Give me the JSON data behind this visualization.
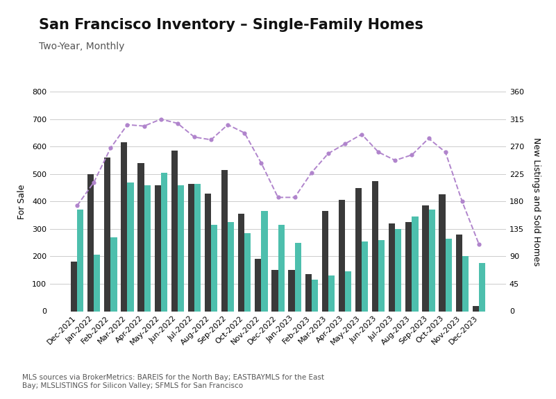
{
  "title": "San Francisco Inventory – Single-Family Homes",
  "subtitle": "Two-Year, Monthly",
  "ylabel_left": "For Sale",
  "ylabel_right": "New Listings and Sold Homes",
  "footnote": "MLS sources via BrokerMetrics: BAREIS for the North Bay; EASTBAYMLS for the East\nBay; MLSLISTINGS for Silicon Valley; SFMLS for San Francisco",
  "categories": [
    "Dec-2021",
    "Jan-2022",
    "Feb-2022",
    "Mar-2022",
    "Apr-2022",
    "May-2022",
    "Jun-2022",
    "Jul-2022",
    "Aug-2022",
    "Sep-2022",
    "Oct-2022",
    "Nov-2022",
    "Dec-2022",
    "Jan-2023",
    "Feb-2023",
    "Mar-2023",
    "Apr-2023",
    "May-2023",
    "Jun-2023",
    "Jul-2023",
    "Aug-2023",
    "Sep-2023",
    "Oct-2023",
    "Nov-2023",
    "Dec-2023"
  ],
  "for_sale": [
    385,
    470,
    595,
    680,
    675,
    700,
    685,
    635,
    625,
    680,
    650,
    540,
    415,
    415,
    505,
    575,
    610,
    645,
    580,
    550,
    570,
    630,
    580,
    400,
    245
  ],
  "new_listings": [
    180,
    500,
    560,
    615,
    540,
    460,
    585,
    465,
    430,
    515,
    355,
    190,
    150,
    150,
    135,
    365,
    405,
    450,
    475,
    320,
    325,
    385,
    425,
    280,
    20
  ],
  "sold": [
    370,
    205,
    270,
    470,
    460,
    505,
    460,
    465,
    315,
    325,
    285,
    365,
    315,
    250,
    115,
    130,
    145,
    255,
    260,
    300,
    345,
    370,
    265,
    200,
    175
  ],
  "for_sale_color": "#b084cc",
  "new_listings_color": "#3a3a3a",
  "sold_color": "#4dbfad",
  "background_color": "#ffffff",
  "ylim_left": [
    0,
    800
  ],
  "ylim_right": [
    0,
    360
  ],
  "yticks_left": [
    0,
    100,
    200,
    300,
    400,
    500,
    600,
    700,
    800
  ],
  "yticks_right": [
    0,
    45,
    90,
    135,
    180,
    225,
    270,
    315,
    360
  ],
  "grid_color": "#cccccc",
  "title_fontsize": 15,
  "subtitle_fontsize": 10,
  "axis_label_fontsize": 9,
  "tick_fontsize": 8,
  "footnote_fontsize": 7.5,
  "bar_width": 0.38
}
